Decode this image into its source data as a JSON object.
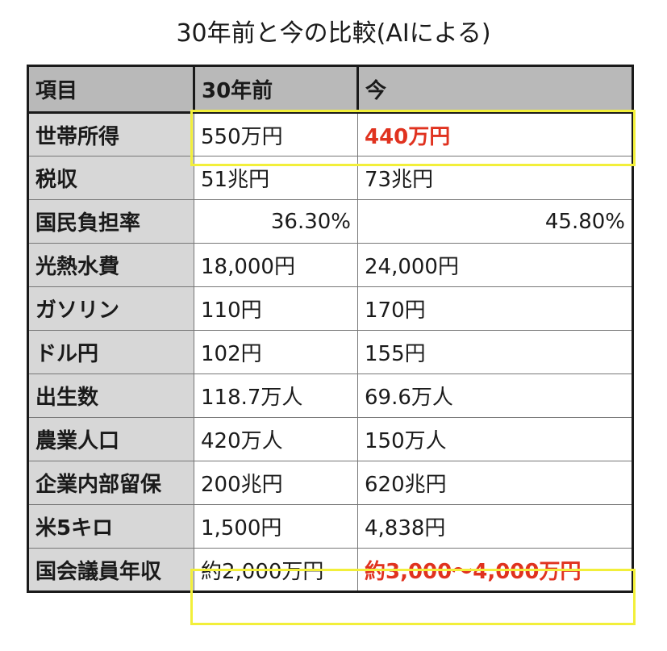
{
  "title": "30年前と今の比較(AIによる)",
  "colors": {
    "header_bg": "#b9b9b9",
    "label_bg": "#d7d7d7",
    "emphasis_text": "#e0321f",
    "highlight_border": "#f2ef3a"
  },
  "table": {
    "headers": [
      "項目",
      "30年前",
      "今"
    ],
    "rows": [
      {
        "label": "世帯所得",
        "past": "550万円",
        "now": "440万円"
      },
      {
        "label": "税収",
        "past": "51兆円",
        "now": "73兆円"
      },
      {
        "label": "国民負担率",
        "past": "36.30%",
        "now": "45.80%"
      },
      {
        "label": "光熱水費",
        "past": "18,000円",
        "now": "24,000円"
      },
      {
        "label": "ガソリン",
        "past": "110円",
        "now": "170円"
      },
      {
        "label": "ドル円",
        "past": "102円",
        "now": "155円"
      },
      {
        "label": "出生数",
        "past": "118.7万人",
        "now": "69.6万人"
      },
      {
        "label": "農業人口",
        "past": "420万人",
        "now": "150万人"
      },
      {
        "label": "企業内部留保",
        "past": "200兆円",
        "now": "620兆円"
      },
      {
        "label": "米5キロ",
        "past": "1,500円",
        "now": "4,838円"
      },
      {
        "label": "国会議員年収",
        "past": "約2,000万円",
        "now": "約3,000〜4,000万円"
      }
    ]
  }
}
